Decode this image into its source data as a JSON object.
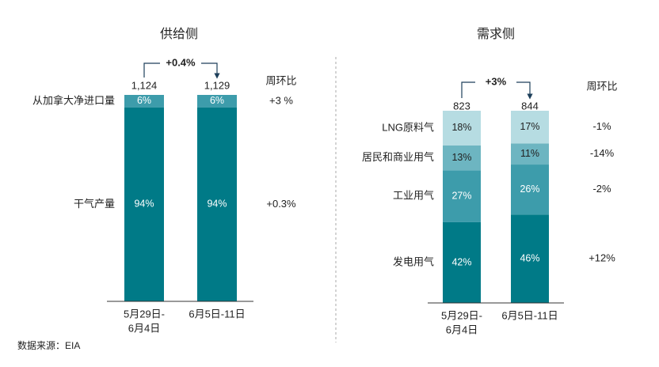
{
  "chart_data": [
    {
      "type": "stacked-bar",
      "title": "供给侧",
      "categories": [
        [
          "5月29日-",
          "6月4日"
        ],
        [
          "6月5日-11日"
        ]
      ],
      "ylim": [
        0,
        100
      ],
      "series": [
        {
          "name": "干气产量",
          "color": "#007a87",
          "label_color": "#ffffff",
          "values": [
            94,
            94
          ],
          "value_labels": [
            "94%",
            "94%"
          ]
        },
        {
          "name": "从加拿大净进口量",
          "color": "#3d9cab",
          "label_color": "#ffffff",
          "values": [
            6,
            6
          ],
          "value_labels": [
            "6%",
            "6%"
          ]
        }
      ],
      "totals": {
        "values": [
          1124,
          1129
        ],
        "value_labels": [
          "1,124",
          "1,129"
        ]
      },
      "total_change": {
        "value": 0.4,
        "label": "+0.4%"
      },
      "week_over_week": {
        "title": "周环比",
        "values": [
          0.3,
          3
        ],
        "value_labels": [
          "+0.3%",
          "+3 %"
        ]
      }
    },
    {
      "type": "stacked-bar",
      "title": "需求侧",
      "categories": [
        [
          "5月29日-",
          "6月4日"
        ],
        [
          "6月5日-11日"
        ]
      ],
      "ylim": [
        0,
        100
      ],
      "series": [
        {
          "name": "发电用气",
          "color": "#007a87",
          "label_color": "#ffffff",
          "values": [
            42,
            46
          ],
          "value_labels": [
            "42%",
            "46%"
          ]
        },
        {
          "name": "工业用气",
          "color": "#3d9cab",
          "label_color": "#ffffff",
          "values": [
            27,
            26
          ],
          "value_labels": [
            "27%",
            "26%"
          ]
        },
        {
          "name": "居民和商业用气",
          "color": "#6db5c1",
          "label_color": "#222222",
          "values": [
            13,
            11
          ],
          "value_labels": [
            "13%",
            "11%"
          ]
        },
        {
          "name": "LNG原料气",
          "color": "#b6dce2",
          "label_color": "#222222",
          "values": [
            18,
            17
          ],
          "value_labels": [
            "18%",
            "17%"
          ]
        }
      ],
      "totals": {
        "values": [
          823,
          844
        ],
        "value_labels": [
          "823",
          "844"
        ]
      },
      "total_change": {
        "value": 3,
        "label": "+3%"
      },
      "week_over_week": {
        "title": "周环比",
        "values": [
          12,
          -2,
          -14,
          -1
        ],
        "value_labels": [
          "+12%",
          "-2%",
          "-14%",
          "-1%"
        ]
      }
    }
  ],
  "source": "数据来源：EIA"
}
